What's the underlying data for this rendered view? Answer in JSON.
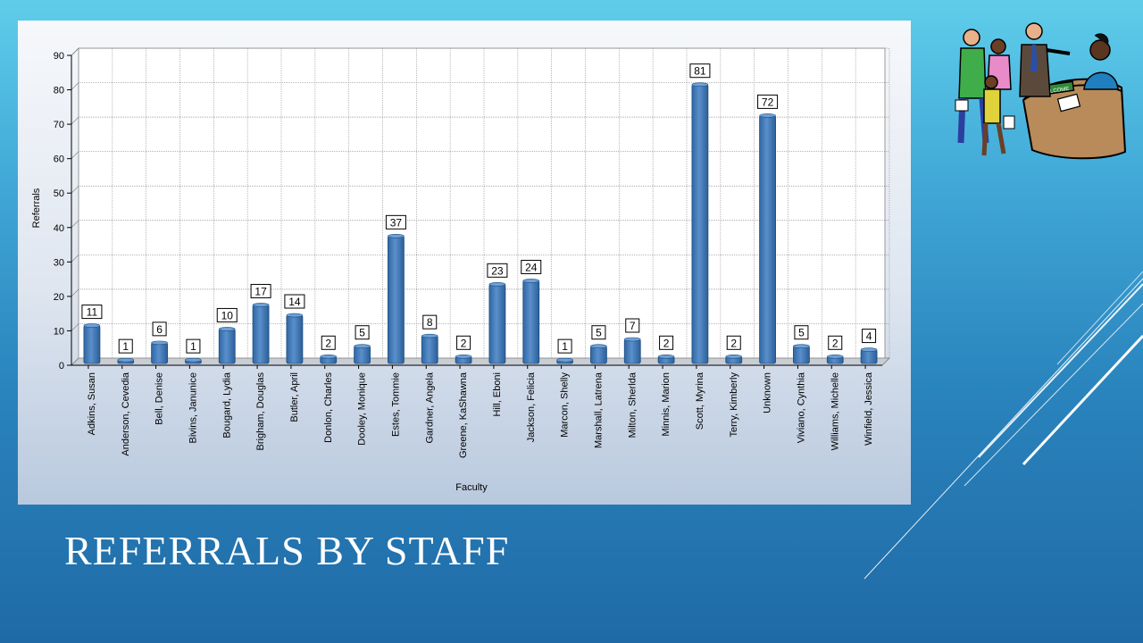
{
  "slide": {
    "title": "REFERRALS BY STAFF"
  },
  "colors": {
    "bar": "#3b74b0",
    "bar_top": "#6fa1d6",
    "slide_text": "#ffffff"
  },
  "clipart": {
    "sign_text": "WELCOME"
  },
  "chart_data": {
    "type": "bar",
    "title": "",
    "xlabel": "Faculty",
    "ylabel": "Referrals",
    "ylim": [
      0,
      90
    ],
    "yticks": [
      0,
      10,
      20,
      30,
      40,
      50,
      60,
      70,
      80,
      90
    ],
    "grid": true,
    "data_labels": true,
    "categories": [
      "Adkins, Susan",
      "Anderson, Cevedia",
      "Bell, Denise",
      "Bivins, Janunice",
      "Bougard, Lydia",
      "Brigham, Douglas",
      "Butler, April",
      "Donlon, Charles",
      "Dooley, Monique",
      "Estes, Tommie",
      "Gardner, Angela",
      "Greene, KaShawna",
      "Hill, Eboni",
      "Jackson, Felicia",
      "Marcon, Shelly",
      "Marshall, Latrena",
      "Milton, Sherlda",
      "Minnis, Marion",
      "Scott, Myrina",
      "Terry, Kimberly",
      "Unknown",
      "Viviano, Cynthia",
      "Williams, Michelle",
      "Winfield, Jessica"
    ],
    "values": [
      11,
      1,
      6,
      1,
      10,
      17,
      14,
      2,
      5,
      37,
      8,
      2,
      23,
      24,
      1,
      5,
      7,
      2,
      81,
      2,
      72,
      5,
      2,
      4
    ]
  }
}
